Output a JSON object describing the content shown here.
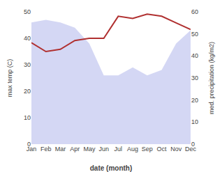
{
  "chart_data": {
    "type": "area",
    "categories": [
      "Jan",
      "Feb",
      "Mar",
      "Apr",
      "May",
      "Jun",
      "Jul",
      "Aug",
      "Sep",
      "Oct",
      "Nov",
      "Dec"
    ],
    "series": [
      {
        "type": "area",
        "color": "#c5caf0",
        "values": [
          46,
          47,
          46,
          44,
          38,
          26,
          26,
          29,
          26,
          28,
          38,
          43
        ]
      },
      {
        "type": "line",
        "color": "#b03030",
        "axis": "y2",
        "values": [
          46,
          42,
          43,
          47,
          48,
          48,
          58,
          57,
          59,
          58,
          55,
          52
        ]
      }
    ],
    "xlabel": "date (month)",
    "ylabel": "max temp (C)",
    "y2label": "med. precipitation (kg/m2)",
    "ylim": [
      0,
      50
    ],
    "yticks": [
      0,
      10,
      20,
      30,
      40,
      50
    ],
    "y2lim": [
      0,
      60
    ],
    "y2ticks": [
      0,
      10,
      20,
      30,
      40,
      50,
      60
    ],
    "grid": false
  }
}
